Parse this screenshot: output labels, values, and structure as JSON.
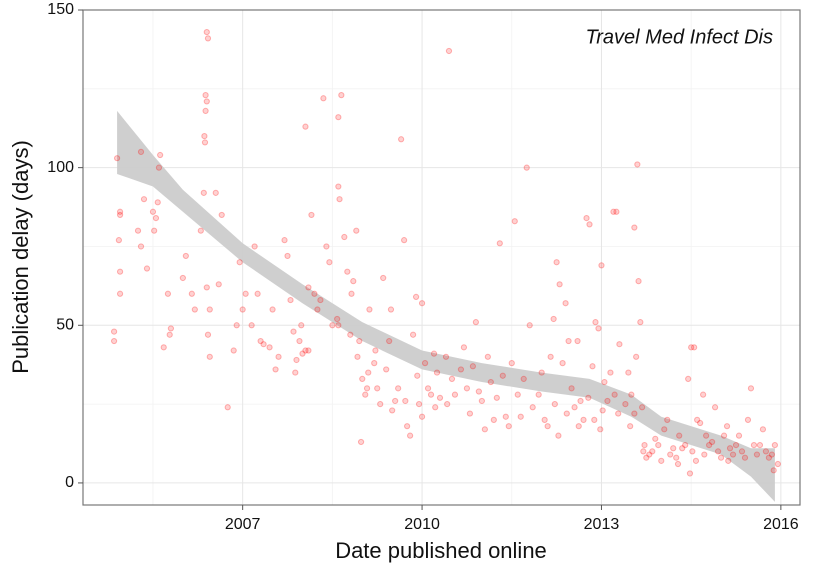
{
  "chart_data": {
    "type": "scatter",
    "annotation": "Travel Med Infect Dis",
    "xlabel": "Date published online",
    "ylabel": "Publication delay (days)",
    "xlim": [
      2004.33,
      2016.32
    ],
    "ylim": [
      -7,
      150
    ],
    "xticks": [
      2007,
      2010,
      2013,
      2016
    ],
    "yticks": [
      0,
      50,
      100,
      150
    ],
    "x_minor_ticks": [
      2005.5,
      2008.5,
      2011.5,
      2014.5
    ],
    "y_minor_ticks": [
      25,
      75,
      125
    ],
    "grid": true,
    "color": "#ff0000",
    "alpha": 0.18,
    "x": [
      2004.85,
      2004.85,
      2004.9,
      2004.95,
      2004.95,
      2004.93,
      2004.95,
      2004.95,
      2005.3,
      2005.35,
      2005.25,
      2005.3,
      2005.4,
      2005.55,
      2005.5,
      2005.6,
      2005.62,
      2005.58,
      2005.52,
      2005.75,
      2005.8,
      2005.78,
      2005.68,
      2006.0,
      2006.05,
      2006.15,
      2006.2,
      2006.4,
      2006.42,
      2006.38,
      2006.4,
      2006.38,
      2006.36,
      2006.37,
      2006.35,
      2006.3,
      2006.4,
      2006.45,
      2006.42,
      2006.45,
      2006.55,
      2006.65,
      2006.6,
      2006.75,
      2006.9,
      2006.85,
      2007.0,
      2007.05,
      2006.95,
      2007.2,
      2007.25,
      2007.3,
      2007.15,
      2007.35,
      2007.5,
      2007.45,
      2007.6,
      2007.55,
      2007.7,
      2007.75,
      2007.8,
      2007.85,
      2007.9,
      2007.88,
      2007.95,
      2008.0,
      2008.05,
      2007.98,
      2008.1,
      2008.05,
      2008.15,
      2008.2,
      2008.25,
      2008.1,
      2008.35,
      2008.4,
      2008.3,
      2008.45,
      2008.5,
      2008.6,
      2008.65,
      2008.6,
      2008.62,
      2008.7,
      2008.75,
      2008.58,
      2008.6,
      2008.8,
      2008.85,
      2008.9,
      2008.82,
      2008.95,
      2008.92,
      2009.0,
      2009.05,
      2008.98,
      2009.1,
      2009.08,
      2009.12,
      2009.2,
      2009.25,
      2009.3,
      2009.22,
      2009.35,
      2009.45,
      2009.5,
      2009.55,
      2009.6,
      2009.4,
      2009.48,
      2009.65,
      2009.7,
      2009.72,
      2009.75,
      2009.8,
      2009.9,
      2009.85,
      2009.95,
      2010.0,
      2009.92,
      2010.0,
      2010.05,
      2010.1,
      2010.15,
      2010.2,
      2010.25,
      2010.3,
      2010.22,
      2010.45,
      2010.4,
      2010.5,
      2010.55,
      2010.42,
      2010.7,
      2010.65,
      2010.75,
      2010.8,
      2010.9,
      2010.85,
      2010.95,
      2011.0,
      2011.1,
      2011.15,
      2011.2,
      2011.05,
      2011.3,
      2011.35,
      2011.25,
      2011.4,
      2011.55,
      2011.5,
      2011.6,
      2011.65,
      2011.45,
      2011.75,
      2011.8,
      2011.7,
      2011.85,
      2012.0,
      2011.95,
      2012.05,
      2012.1,
      2012.2,
      2012.25,
      2012.3,
      2012.15,
      2012.22,
      2012.28,
      2012.4,
      2012.45,
      2012.35,
      2012.5,
      2012.42,
      2012.6,
      2012.65,
      2012.55,
      2012.7,
      2012.62,
      2012.75,
      2012.8,
      2012.9,
      2012.85,
      2012.78,
      2012.88,
      2013.0,
      2012.95,
      2013.05,
      2013.1,
      2013.02,
      2012.98,
      2013.2,
      2013.25,
      2013.3,
      2013.15,
      2013.22,
      2013.28,
      2013.45,
      2013.5,
      2013.4,
      2013.55,
      2013.48,
      2013.6,
      2013.55,
      2013.65,
      2013.62,
      2013.58,
      2013.68,
      2013.7,
      2013.75,
      2013.72,
      2013.8,
      2013.9,
      2013.95,
      2013.85,
      2014.0,
      2014.1,
      2014.05,
      2014.15,
      2014.2,
      2014.3,
      2014.25,
      2014.35,
      2014.4,
      2014.28,
      2014.5,
      2014.55,
      2014.45,
      2014.6,
      2014.52,
      2014.58,
      2014.48,
      2014.7,
      2014.65,
      2014.75,
      2014.8,
      2014.72,
      2014.9,
      2014.85,
      2014.95,
      2015.0,
      2015.1,
      2015.05,
      2015.15,
      2015.2,
      2015.12,
      2015.3,
      2015.25,
      2015.35,
      2015.4,
      2015.5,
      2015.45,
      2015.55,
      2015.6,
      2015.7,
      2015.65,
      2015.75,
      2015.8,
      2015.9,
      2015.85,
      2015.95,
      2015.88
    ],
    "y": [
      48,
      45,
      103,
      86,
      85,
      77,
      67,
      60,
      105,
      90,
      80,
      75,
      68,
      84,
      86,
      100,
      104,
      89,
      80,
      60,
      49,
      47,
      43,
      65,
      72,
      60,
      55,
      143,
      141,
      123,
      121,
      118,
      110,
      108,
      92,
      80,
      62,
      55,
      47,
      40,
      92,
      85,
      63,
      24,
      50,
      42,
      55,
      60,
      70,
      75,
      60,
      45,
      50,
      44,
      55,
      43,
      40,
      36,
      77,
      72,
      58,
      48,
      39,
      35,
      45,
      41,
      42,
      50,
      62,
      113,
      85,
      60,
      55,
      42,
      122,
      75,
      58,
      70,
      50,
      116,
      123,
      94,
      90,
      78,
      67,
      52,
      50,
      47,
      64,
      80,
      60,
      45,
      40,
      33,
      28,
      13,
      35,
      30,
      55,
      38,
      30,
      25,
      42,
      65,
      45,
      23,
      26,
      30,
      36,
      55,
      109,
      77,
      26,
      18,
      15,
      59,
      47,
      25,
      21,
      34,
      57,
      38,
      30,
      28,
      41,
      35,
      27,
      24,
      137,
      40,
      33,
      28,
      25,
      43,
      36,
      30,
      22,
      51,
      37,
      29,
      26,
      40,
      32,
      20,
      17,
      76,
      34,
      27,
      21,
      83,
      38,
      28,
      21,
      18,
      100,
      50,
      33,
      24,
      35,
      28,
      20,
      18,
      52,
      70,
      63,
      40,
      25,
      15,
      57,
      45,
      38,
      30,
      22,
      45,
      26,
      24,
      20,
      18,
      84,
      82,
      51,
      37,
      27,
      20,
      69,
      49,
      32,
      26,
      23,
      17,
      86,
      86,
      44,
      35,
      28,
      22,
      35,
      28,
      25,
      22,
      18,
      101,
      81,
      51,
      64,
      40,
      24,
      10,
      8,
      12,
      9,
      14,
      12,
      10,
      7,
      20,
      17,
      9,
      11,
      15,
      8,
      11,
      12,
      6,
      43,
      43,
      33,
      20,
      10,
      7,
      3,
      28,
      19,
      15,
      12,
      9,
      24,
      13,
      10,
      8,
      18,
      15,
      11,
      9,
      7,
      15,
      12,
      10,
      8,
      30,
      20,
      12,
      9,
      17,
      12,
      10,
      8,
      12,
      9,
      6,
      4
    ],
    "smooth": {
      "color": "#cccccc",
      "x": [
        2004.9,
        2005.5,
        2006,
        2007,
        2008,
        2009,
        2010,
        2011,
        2012,
        2012.8,
        2013.5,
        2014,
        2015,
        2015.5,
        2015.9
      ],
      "upper": [
        118,
        104,
        93,
        76,
        63,
        51,
        42,
        38,
        35,
        33,
        28,
        21,
        15,
        11,
        11
      ],
      "lower": [
        98,
        94,
        86,
        70,
        57,
        45,
        36,
        32,
        29,
        27,
        21,
        15,
        9,
        2,
        -6
      ]
    }
  }
}
